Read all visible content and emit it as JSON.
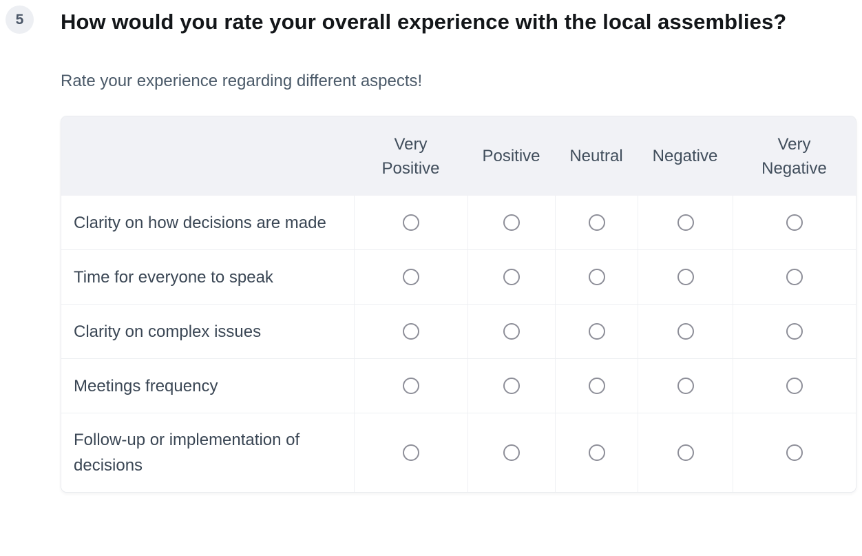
{
  "question": {
    "number": "5",
    "title": "How would you rate your overall experience with the local assemblies?",
    "subtitle": "Rate your experience regarding different aspects!"
  },
  "matrix": {
    "columns": [
      "Very Positive",
      "Positive",
      "Neutral",
      "Negative",
      "Very Negative"
    ],
    "rows": [
      "Clarity on how decisions are made",
      "Time for everyone to speak",
      "Clarity on complex issues",
      "Meetings frequency",
      "Follow-up or implementation of decisions"
    ],
    "radio_state": "unselected"
  },
  "colors": {
    "header_bg": "#f1f2f6",
    "badge_bg": "#edeff3",
    "badge_text": "#4b5768",
    "title_text": "#131619",
    "subtitle_text": "#4b5a69",
    "row_label_text": "#3a4654",
    "header_text": "#414e5c",
    "radio_border": "#8d8e98",
    "grid_border": "#edeff2"
  }
}
